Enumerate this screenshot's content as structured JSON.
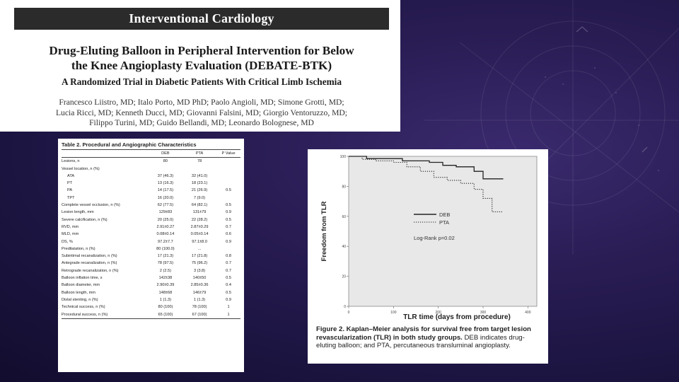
{
  "header": {
    "journal": "Interventional Cardiology",
    "title_line1": "Drug-Eluting Balloon in Peripheral Intervention for Below",
    "title_line2": "the Knee Angioplasty Evaluation (DEBATE-BTK)",
    "subtitle": "A Randomized Trial in Diabetic Patients With Critical Limb Ischemia",
    "authors_line1": "Francesco Liistro, MD; Italo Porto, MD PhD; Paolo Angioli, MD; Simone Grotti, MD;",
    "authors_line2": "Lucia Ricci, MD; Kenneth Ducci, MD; Giovanni Falsini, MD; Giorgio Ventoruzzo, MD;",
    "authors_line3": "Filippo Turini, MD; Guido Bellandi, MD; Leonardo Bolognese, MD"
  },
  "table": {
    "caption_num": "Table 2.",
    "caption_title": "Procedural and Angiographic Characteristics",
    "headers": [
      "",
      "DEB",
      "PTA",
      "P Value"
    ],
    "rows": [
      {
        "label": "Lesions, n",
        "deb": "80",
        "pta": "78",
        "p": ""
      },
      {
        "label": "Vessel location, n (%)",
        "deb": "",
        "pta": "",
        "p": ""
      },
      {
        "label": "ATA",
        "deb": "37 (46.3)",
        "pta": "32 (41.0)",
        "p": "",
        "indent": true
      },
      {
        "label": "PT",
        "deb": "13 (16.3)",
        "pta": "18 (23.1)",
        "p": "",
        "indent": true
      },
      {
        "label": "PA",
        "deb": "14 (17.5)",
        "pta": "21 (26.9)",
        "p": "0.5",
        "indent": true
      },
      {
        "label": "TPT",
        "deb": "16 (20.0)",
        "pta": "7 (9.0)",
        "p": "",
        "indent": true
      },
      {
        "label": "Complete vessel occlusion, n (%)",
        "deb": "62 (77.5)",
        "pta": "64 (82.1)",
        "p": "0.5"
      },
      {
        "label": "Lesion length, mm",
        "deb": "129±83",
        "pta": "131±79",
        "p": "0.9"
      },
      {
        "label": "Severe calcification, n (%)",
        "deb": "20 (25.0)",
        "pta": "22 (28.2)",
        "p": "0.5"
      },
      {
        "label": "RVD, mm",
        "deb": "2.91±0.27",
        "pta": "2.87±0.29",
        "p": "0.7"
      },
      {
        "label": "MLD, mm",
        "deb": "0.08±0.14",
        "pta": "0.05±0.14",
        "p": "0.6"
      },
      {
        "label": "DS, %",
        "deb": "97.2±7.7",
        "pta": "97.1±8.0",
        "p": "0.9"
      },
      {
        "label": "Predilatation, n (%)",
        "deb": "80 (100.0)",
        "pta": "...",
        "p": ""
      },
      {
        "label": "Subintimal recanalization, n (%)",
        "deb": "17 (21.3)",
        "pta": "17 (21.8)",
        "p": "0.8"
      },
      {
        "label": "Antegrade recanalization, n (%)",
        "deb": "78 (97.5)",
        "pta": "75 (96.2)",
        "p": "0.7"
      },
      {
        "label": "Retrograde recanalization, n (%)",
        "deb": "2 (2.5)",
        "pta": "3 (3.8)",
        "p": "0.7"
      },
      {
        "label": "Balloon inflation time, s",
        "deb": "142±38",
        "pta": "140±50",
        "p": "0.5"
      },
      {
        "label": "Balloon diameter, mm",
        "deb": "2.90±0.39",
        "pta": "2.85±0.36",
        "p": "0.4"
      },
      {
        "label": "Balloon length, mm",
        "deb": "148±68",
        "pta": "146±79",
        "p": "0.5"
      },
      {
        "label": "Distal stenting, n (%)",
        "deb": "1 (1.3)",
        "pta": "1 (1.3)",
        "p": "0.9"
      },
      {
        "label": "Technical success, n (%)",
        "deb": "80 (100)",
        "pta": "78 (100)",
        "p": "1"
      },
      {
        "label": "Procedural success, n (%)",
        "deb": "65 (100)",
        "pta": "67 (100)",
        "p": "1"
      }
    ]
  },
  "figure": {
    "ylabel": "Freedom from TLR",
    "xlabel": "TLR time (days from procedure)",
    "yticks": [
      "100",
      "80",
      "60",
      "40",
      "20",
      "0"
    ],
    "xticks": [
      "0",
      "100",
      "200",
      "300",
      "400"
    ],
    "legend": [
      "DEB",
      "PTA"
    ],
    "logrank": "Log-Rank p=0.02",
    "caption_bold": "Figure 2. Kaplan–Meier analysis for survival free from target lesion revascularization (TLR) in both study groups.",
    "caption_rest": "DEB indicates drug-eluting balloon; and PTA, percutaneous transluminal angioplasty."
  },
  "chart_data": {
    "type": "line",
    "title": "Kaplan–Meier analysis for survival free from target lesion revascularization (TLR)",
    "xlabel": "TLR time (days from procedure)",
    "ylabel": "Freedom from TLR",
    "xlim": [
      0,
      420
    ],
    "ylim": [
      0,
      100
    ],
    "grid": false,
    "legend_position": "center-right",
    "series": [
      {
        "name": "DEB",
        "style": "solid",
        "x": [
          0,
          40,
          40,
          120,
          120,
          180,
          180,
          210,
          210,
          240,
          240,
          280,
          280,
          300,
          300,
          345
        ],
        "y": [
          100,
          100,
          98.5,
          98.5,
          97,
          97,
          96,
          96,
          94,
          94,
          93,
          93,
          90,
          90,
          85,
          85
        ]
      },
      {
        "name": "PTA",
        "style": "dotted",
        "x": [
          0,
          30,
          30,
          60,
          60,
          100,
          100,
          130,
          130,
          160,
          160,
          190,
          190,
          220,
          220,
          250,
          250,
          280,
          280,
          300,
          300,
          320,
          320,
          345
        ],
        "y": [
          100,
          100,
          98,
          98,
          97,
          97,
          96,
          96,
          93,
          93,
          90,
          90,
          86,
          86,
          84,
          84,
          82,
          82,
          78,
          78,
          72,
          72,
          63,
          63
        ]
      }
    ]
  }
}
